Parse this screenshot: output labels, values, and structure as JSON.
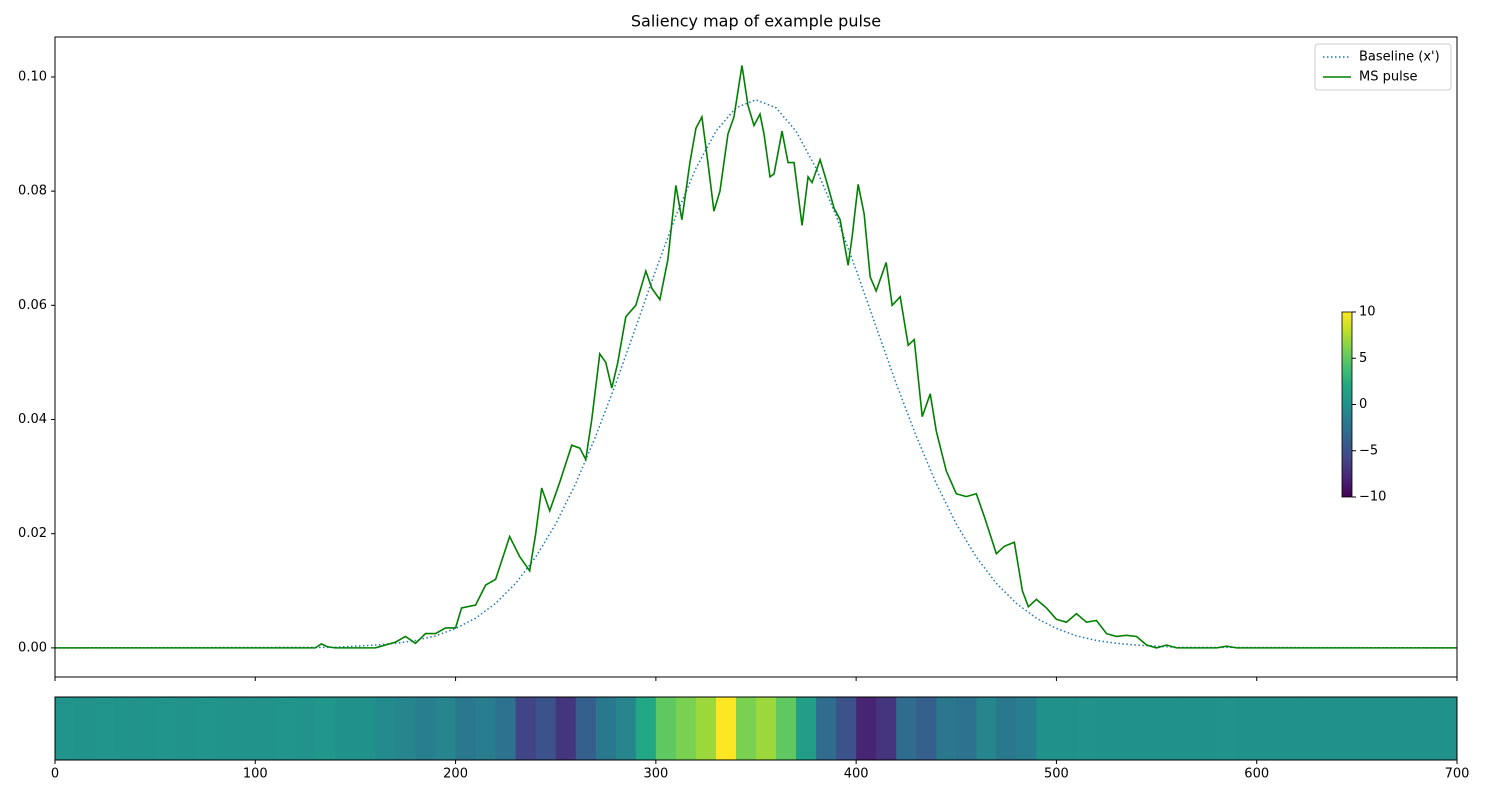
{
  "chart_data": {
    "type": "line",
    "title": "Saliency map of example pulse",
    "xlim": [
      0,
      700
    ],
    "ylim": [
      -0.0051,
      0.107
    ],
    "xticks": [
      0,
      100,
      200,
      300,
      400,
      500,
      600,
      700
    ],
    "yticks": [
      {
        "value": 0,
        "label": "0.00"
      },
      {
        "value": 0.02,
        "label": "0.02"
      },
      {
        "value": 0.04,
        "label": "0.04"
      },
      {
        "value": 0.06,
        "label": "0.06"
      },
      {
        "value": 0.08,
        "label": "0.08"
      },
      {
        "value": 0.1,
        "label": "0.10"
      }
    ],
    "legend": "upper right",
    "series": [
      {
        "name": "Baseline (x')",
        "color": "#1f77b4",
        "style": "dotted",
        "x": [
          0,
          140,
          150,
          160,
          170,
          180,
          190,
          200,
          210,
          220,
          230,
          240,
          250,
          260,
          270,
          280,
          290,
          300,
          310,
          320,
          330,
          340,
          350,
          360,
          370,
          380,
          390,
          400,
          410,
          420,
          430,
          440,
          450,
          460,
          470,
          480,
          490,
          500,
          510,
          520,
          530,
          540,
          550,
          560,
          700
        ],
        "values": [
          0,
          0.0001,
          0.0003,
          0.0005,
          0.0008,
          0.0013,
          0.0021,
          0.0034,
          0.0052,
          0.0078,
          0.0113,
          0.0159,
          0.0217,
          0.0288,
          0.0371,
          0.0463,
          0.0562,
          0.0662,
          0.0757,
          0.084,
          0.0905,
          0.0946,
          0.096,
          0.0946,
          0.0905,
          0.084,
          0.0757,
          0.0662,
          0.0562,
          0.0463,
          0.0371,
          0.0288,
          0.0217,
          0.0159,
          0.0113,
          0.0078,
          0.0052,
          0.0034,
          0.0021,
          0.0013,
          0.0008,
          0.0005,
          0.0003,
          0.0001,
          0
        ]
      },
      {
        "name": "MS pulse",
        "color": "#008000",
        "style": "solid",
        "x": [
          0,
          130,
          133,
          136,
          140,
          160,
          170,
          175,
          180,
          185,
          190,
          195,
          200,
          203,
          210,
          215,
          220,
          227,
          232,
          237,
          240,
          243,
          247,
          252,
          258,
          262,
          265,
          268,
          272,
          275,
          278,
          281,
          285,
          290,
          295,
          298,
          302,
          306,
          310,
          313,
          317,
          320,
          323,
          326,
          329,
          332,
          336,
          339,
          343,
          346,
          349,
          352,
          354,
          357,
          359,
          363,
          366,
          369,
          373,
          376,
          378,
          382,
          385,
          389,
          392,
          396,
          398,
          401,
          404,
          407,
          410,
          415,
          418,
          422,
          426,
          429,
          433,
          437,
          440,
          445,
          450,
          455,
          460,
          464,
          470,
          474,
          479,
          483,
          486,
          490,
          495,
          500,
          505,
          510,
          515,
          520,
          525,
          530,
          535,
          540,
          545,
          550,
          555,
          560,
          580,
          585,
          590,
          700
        ],
        "values": [
          0,
          0,
          0.0007,
          0.0002,
          0,
          0,
          0.001,
          0.002,
          0.0008,
          0.0025,
          0.0025,
          0.0035,
          0.0035,
          0.007,
          0.0075,
          0.011,
          0.012,
          0.0195,
          0.016,
          0.0135,
          0.02,
          0.028,
          0.024,
          0.029,
          0.0355,
          0.035,
          0.033,
          0.04,
          0.0515,
          0.05,
          0.0455,
          0.05,
          0.058,
          0.06,
          0.066,
          0.063,
          0.061,
          0.068,
          0.081,
          0.075,
          0.085,
          0.091,
          0.093,
          0.085,
          0.0765,
          0.08,
          0.09,
          0.093,
          0.102,
          0.095,
          0.0915,
          0.0935,
          0.09,
          0.0825,
          0.083,
          0.0905,
          0.085,
          0.085,
          0.074,
          0.0825,
          0.0815,
          0.0855,
          0.082,
          0.077,
          0.075,
          0.067,
          0.072,
          0.0812,
          0.076,
          0.065,
          0.0625,
          0.0675,
          0.06,
          0.0615,
          0.053,
          0.054,
          0.0405,
          0.0445,
          0.038,
          0.031,
          0.027,
          0.0265,
          0.027,
          0.023,
          0.0165,
          0.0178,
          0.0185,
          0.01,
          0.0072,
          0.0085,
          0.007,
          0.005,
          0.0045,
          0.006,
          0.0045,
          0.0048,
          0.0025,
          0.002,
          0.0022,
          0.002,
          0.0005,
          0,
          0.0005,
          0,
          0,
          0.0003,
          0,
          0
        ]
      }
    ],
    "heatmap": {
      "type": "heatmap",
      "colormap": "viridis",
      "clim": [
        -10,
        10
      ],
      "bins": [
        0,
        10,
        20,
        30,
        40,
        50,
        60,
        70,
        80,
        90,
        100,
        110,
        120,
        130,
        140,
        150,
        160,
        170,
        180,
        190,
        200,
        210,
        220,
        230,
        240,
        250,
        260,
        270,
        280,
        290,
        300,
        310,
        320,
        330,
        340,
        350,
        360,
        370,
        380,
        390,
        400,
        410,
        420,
        430,
        440,
        450,
        460,
        470,
        480,
        490,
        500,
        510,
        520,
        530,
        540,
        550,
        560,
        570,
        580,
        590,
        600,
        610,
        620,
        630,
        640,
        650,
        660,
        670,
        680,
        690,
        700
      ],
      "values": [
        0.3,
        0.2,
        0.3,
        0.2,
        0.2,
        0.3,
        0.2,
        0.3,
        0.2,
        0.2,
        0.2,
        0.3,
        0.2,
        0.4,
        0,
        0,
        -0.5,
        -1,
        -1.5,
        -1,
        -2,
        -1.5,
        -2.5,
        -6,
        -5,
        -7,
        -4,
        -2,
        -1,
        2,
        5,
        6,
        7,
        10,
        6,
        7,
        5,
        1,
        -3,
        -5,
        -8,
        -7,
        -3,
        -4,
        -2,
        -2.5,
        -1,
        -2,
        -1.5,
        0,
        0,
        0.2,
        0,
        0,
        0,
        0,
        0,
        0,
        0.1,
        0,
        0,
        0,
        0,
        0,
        0,
        0,
        0,
        0,
        0,
        0
      ],
      "colorbar_ticks": [
        {
          "value": -10,
          "label": "−10"
        },
        {
          "value": -5,
          "label": "−5"
        },
        0,
        5,
        10
      ]
    }
  }
}
